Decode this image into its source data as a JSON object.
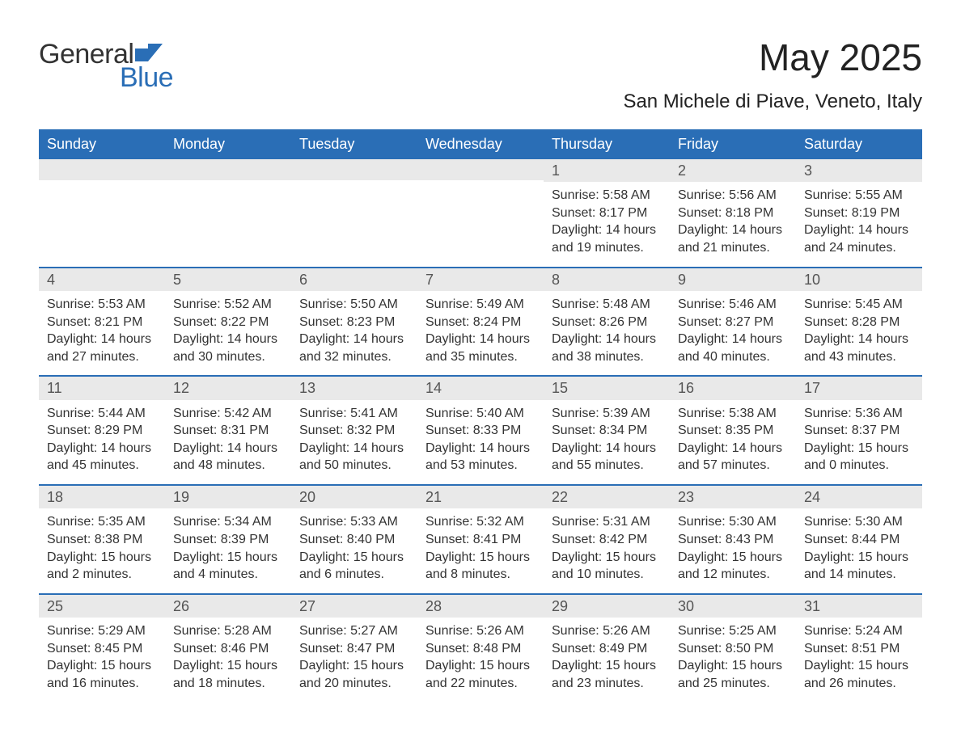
{
  "brand": {
    "word1": "General",
    "word2": "Blue",
    "icon_name": "flag-icon",
    "primary_color": "#2a6eb6",
    "text_color": "#333333"
  },
  "title": {
    "month": "May 2025",
    "location": "San Michele di Piave, Veneto, Italy"
  },
  "calendar": {
    "type": "table",
    "background_color": "#ffffff",
    "header_bg": "#2a6eb6",
    "header_fg": "#ffffff",
    "row_divider_color": "#2a6eb6",
    "daynum_bg": "#e9e9e9",
    "daynum_fg": "#555555",
    "body_fg": "#333333",
    "header_fontsize": 18,
    "daynum_fontsize": 18,
    "body_fontsize": 16,
    "columns": [
      "Sunday",
      "Monday",
      "Tuesday",
      "Wednesday",
      "Thursday",
      "Friday",
      "Saturday"
    ],
    "weeks": [
      [
        {
          "n": "",
          "sunrise": "",
          "sunset": "",
          "daylight": ""
        },
        {
          "n": "",
          "sunrise": "",
          "sunset": "",
          "daylight": ""
        },
        {
          "n": "",
          "sunrise": "",
          "sunset": "",
          "daylight": ""
        },
        {
          "n": "",
          "sunrise": "",
          "sunset": "",
          "daylight": ""
        },
        {
          "n": "1",
          "sunrise": "Sunrise: 5:58 AM",
          "sunset": "Sunset: 8:17 PM",
          "daylight": "Daylight: 14 hours and 19 minutes."
        },
        {
          "n": "2",
          "sunrise": "Sunrise: 5:56 AM",
          "sunset": "Sunset: 8:18 PM",
          "daylight": "Daylight: 14 hours and 21 minutes."
        },
        {
          "n": "3",
          "sunrise": "Sunrise: 5:55 AM",
          "sunset": "Sunset: 8:19 PM",
          "daylight": "Daylight: 14 hours and 24 minutes."
        }
      ],
      [
        {
          "n": "4",
          "sunrise": "Sunrise: 5:53 AM",
          "sunset": "Sunset: 8:21 PM",
          "daylight": "Daylight: 14 hours and 27 minutes."
        },
        {
          "n": "5",
          "sunrise": "Sunrise: 5:52 AM",
          "sunset": "Sunset: 8:22 PM",
          "daylight": "Daylight: 14 hours and 30 minutes."
        },
        {
          "n": "6",
          "sunrise": "Sunrise: 5:50 AM",
          "sunset": "Sunset: 8:23 PM",
          "daylight": "Daylight: 14 hours and 32 minutes."
        },
        {
          "n": "7",
          "sunrise": "Sunrise: 5:49 AM",
          "sunset": "Sunset: 8:24 PM",
          "daylight": "Daylight: 14 hours and 35 minutes."
        },
        {
          "n": "8",
          "sunrise": "Sunrise: 5:48 AM",
          "sunset": "Sunset: 8:26 PM",
          "daylight": "Daylight: 14 hours and 38 minutes."
        },
        {
          "n": "9",
          "sunrise": "Sunrise: 5:46 AM",
          "sunset": "Sunset: 8:27 PM",
          "daylight": "Daylight: 14 hours and 40 minutes."
        },
        {
          "n": "10",
          "sunrise": "Sunrise: 5:45 AM",
          "sunset": "Sunset: 8:28 PM",
          "daylight": "Daylight: 14 hours and 43 minutes."
        }
      ],
      [
        {
          "n": "11",
          "sunrise": "Sunrise: 5:44 AM",
          "sunset": "Sunset: 8:29 PM",
          "daylight": "Daylight: 14 hours and 45 minutes."
        },
        {
          "n": "12",
          "sunrise": "Sunrise: 5:42 AM",
          "sunset": "Sunset: 8:31 PM",
          "daylight": "Daylight: 14 hours and 48 minutes."
        },
        {
          "n": "13",
          "sunrise": "Sunrise: 5:41 AM",
          "sunset": "Sunset: 8:32 PM",
          "daylight": "Daylight: 14 hours and 50 minutes."
        },
        {
          "n": "14",
          "sunrise": "Sunrise: 5:40 AM",
          "sunset": "Sunset: 8:33 PM",
          "daylight": "Daylight: 14 hours and 53 minutes."
        },
        {
          "n": "15",
          "sunrise": "Sunrise: 5:39 AM",
          "sunset": "Sunset: 8:34 PM",
          "daylight": "Daylight: 14 hours and 55 minutes."
        },
        {
          "n": "16",
          "sunrise": "Sunrise: 5:38 AM",
          "sunset": "Sunset: 8:35 PM",
          "daylight": "Daylight: 14 hours and 57 minutes."
        },
        {
          "n": "17",
          "sunrise": "Sunrise: 5:36 AM",
          "sunset": "Sunset: 8:37 PM",
          "daylight": "Daylight: 15 hours and 0 minutes."
        }
      ],
      [
        {
          "n": "18",
          "sunrise": "Sunrise: 5:35 AM",
          "sunset": "Sunset: 8:38 PM",
          "daylight": "Daylight: 15 hours and 2 minutes."
        },
        {
          "n": "19",
          "sunrise": "Sunrise: 5:34 AM",
          "sunset": "Sunset: 8:39 PM",
          "daylight": "Daylight: 15 hours and 4 minutes."
        },
        {
          "n": "20",
          "sunrise": "Sunrise: 5:33 AM",
          "sunset": "Sunset: 8:40 PM",
          "daylight": "Daylight: 15 hours and 6 minutes."
        },
        {
          "n": "21",
          "sunrise": "Sunrise: 5:32 AM",
          "sunset": "Sunset: 8:41 PM",
          "daylight": "Daylight: 15 hours and 8 minutes."
        },
        {
          "n": "22",
          "sunrise": "Sunrise: 5:31 AM",
          "sunset": "Sunset: 8:42 PM",
          "daylight": "Daylight: 15 hours and 10 minutes."
        },
        {
          "n": "23",
          "sunrise": "Sunrise: 5:30 AM",
          "sunset": "Sunset: 8:43 PM",
          "daylight": "Daylight: 15 hours and 12 minutes."
        },
        {
          "n": "24",
          "sunrise": "Sunrise: 5:30 AM",
          "sunset": "Sunset: 8:44 PM",
          "daylight": "Daylight: 15 hours and 14 minutes."
        }
      ],
      [
        {
          "n": "25",
          "sunrise": "Sunrise: 5:29 AM",
          "sunset": "Sunset: 8:45 PM",
          "daylight": "Daylight: 15 hours and 16 minutes."
        },
        {
          "n": "26",
          "sunrise": "Sunrise: 5:28 AM",
          "sunset": "Sunset: 8:46 PM",
          "daylight": "Daylight: 15 hours and 18 minutes."
        },
        {
          "n": "27",
          "sunrise": "Sunrise: 5:27 AM",
          "sunset": "Sunset: 8:47 PM",
          "daylight": "Daylight: 15 hours and 20 minutes."
        },
        {
          "n": "28",
          "sunrise": "Sunrise: 5:26 AM",
          "sunset": "Sunset: 8:48 PM",
          "daylight": "Daylight: 15 hours and 22 minutes."
        },
        {
          "n": "29",
          "sunrise": "Sunrise: 5:26 AM",
          "sunset": "Sunset: 8:49 PM",
          "daylight": "Daylight: 15 hours and 23 minutes."
        },
        {
          "n": "30",
          "sunrise": "Sunrise: 5:25 AM",
          "sunset": "Sunset: 8:50 PM",
          "daylight": "Daylight: 15 hours and 25 minutes."
        },
        {
          "n": "31",
          "sunrise": "Sunrise: 5:24 AM",
          "sunset": "Sunset: 8:51 PM",
          "daylight": "Daylight: 15 hours and 26 minutes."
        }
      ]
    ]
  }
}
